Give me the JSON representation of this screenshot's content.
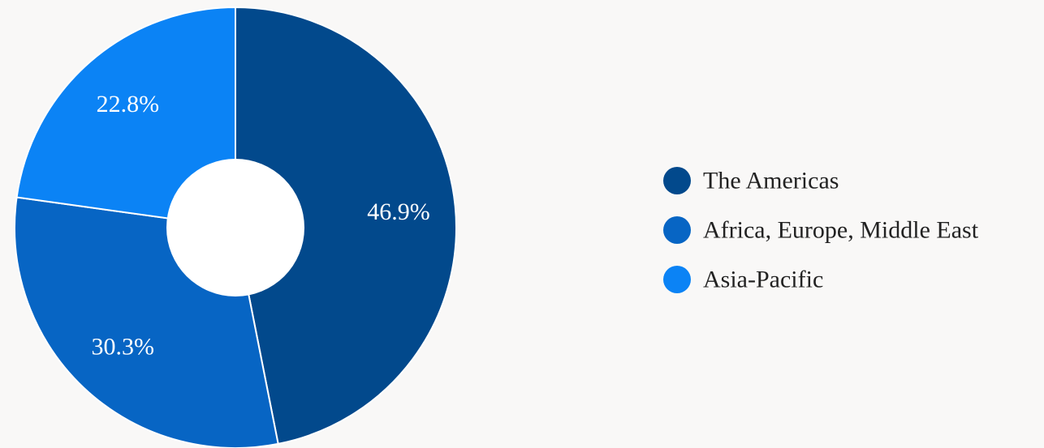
{
  "chart_data": {
    "type": "pie",
    "categories": [
      "The Americas",
      "Africa, Europe, Middle East",
      "Asia-Pacific"
    ],
    "values": [
      46.9,
      30.3,
      22.8
    ],
    "data_labels": [
      "46.9%",
      "30.3%",
      "22.8%"
    ],
    "colors": [
      "#02498c",
      "#0765c4",
      "#0b83f5"
    ],
    "donut": true,
    "start_angle_deg": 0,
    "direction": "clockwise",
    "legend_position": "right"
  }
}
